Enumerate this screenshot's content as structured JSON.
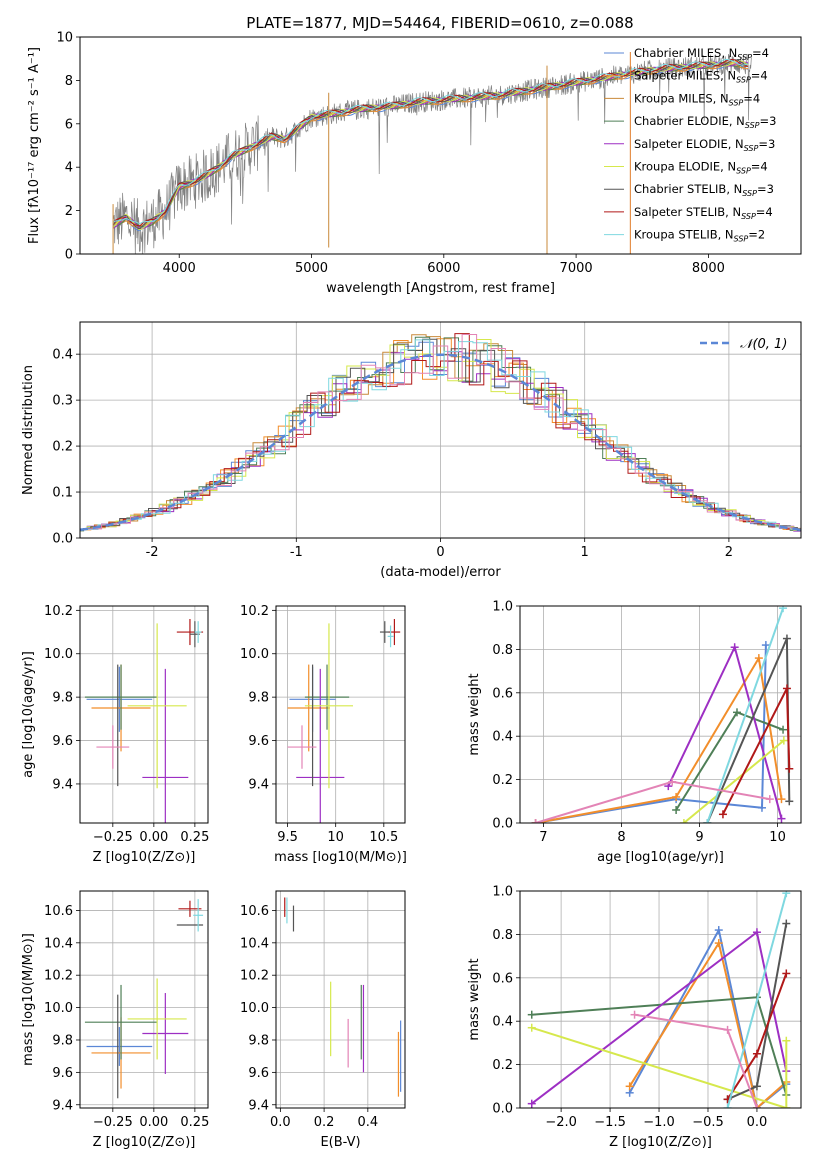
{
  "figure": {
    "title": "PLATE=1877, MJD=54464, FIBERID=0610, z=0.088"
  },
  "colors": {
    "Chabrier MILES": "#5b87d6",
    "Salpeter MILES": "#f28e2b",
    "Kroupa MILES": "#c98a3a",
    "Chabrier ELODIE": "#4f7f57",
    "Salpeter ELODIE": "#9d2fc3",
    "Kroupa ELODIE": "#d6e84c",
    "Chabrier STELIB": "#555555",
    "Salpeter STELIB": "#b01818",
    "Kroupa STELIB": "#7fd8e0",
    "extra_orange": "#e07c2a",
    "extra_pink": "#e384b6",
    "spectrum": "#808080",
    "gaussian": "#5b87d6"
  },
  "chart_data": [
    {
      "type": "line",
      "panel": "spectrum",
      "title": "PLATE=1877, MJD=54464, FIBERID=0610, z=0.088",
      "xlabel": "wavelength [Angstrom, rest frame]",
      "ylabel": "Flux [fλ10⁻¹⁷ erg cm⁻² s⁻¹ A⁻¹]",
      "xlim": [
        3250,
        8700
      ],
      "ylim": [
        0,
        10
      ],
      "xticks": [
        4000,
        5000,
        6000,
        7000,
        8000
      ],
      "yticks": [
        0,
        2,
        4,
        6,
        8,
        10
      ],
      "legend_position": "top-right",
      "legend": [
        {
          "label": "Chabrier MILES, N",
          "sub": "SSP",
          "value": "=4"
        },
        {
          "label": "Salpeter MILES, N",
          "sub": "SSP",
          "value": "=4"
        },
        {
          "label": "Kroupa MILES, N",
          "sub": "SSP",
          "value": "=4"
        },
        {
          "label": "Chabrier ELODIE, N",
          "sub": "SSP",
          "value": "=3"
        },
        {
          "label": "Salpeter ELODIE, N",
          "sub": "SSP",
          "value": "=3"
        },
        {
          "label": "Kroupa ELODIE, N",
          "sub": "SSP",
          "value": "=4"
        },
        {
          "label": "Chabrier STELIB, N",
          "sub": "SSP",
          "value": "=3"
        },
        {
          "label": "Salpeter STELIB, N",
          "sub": "SSP",
          "value": "=4"
        },
        {
          "label": "Kroupa STELIB, N",
          "sub": "SSP",
          "value": "=2"
        }
      ],
      "model_curve": {
        "x": [
          3500,
          3600,
          3700,
          3800,
          3900,
          4000,
          4100,
          4200,
          4300,
          4400,
          4500,
          4600,
          4700,
          4800,
          4900,
          5000,
          5200,
          5400,
          5600,
          5800,
          6000,
          6200,
          6400,
          6600,
          6800,
          7000,
          7200,
          7400,
          7600,
          7800,
          8000,
          8200,
          8300
        ],
        "y": [
          1.3,
          1.7,
          1.2,
          1.5,
          2.0,
          3.1,
          3.3,
          3.6,
          4.0,
          4.5,
          4.8,
          5.1,
          5.4,
          5.3,
          5.8,
          6.3,
          6.5,
          6.7,
          6.8,
          7.0,
          7.1,
          7.2,
          7.3,
          7.5,
          7.7,
          7.9,
          8.1,
          8.3,
          8.5,
          8.6,
          8.7,
          8.8,
          8.7
        ]
      },
      "spikes": [
        {
          "x": 3500,
          "y": 0
        },
        {
          "x": 5130,
          "y": 0.3
        },
        {
          "x": 6780,
          "y": 0
        },
        {
          "x": 7410,
          "y": 0
        }
      ]
    },
    {
      "type": "line",
      "panel": "residual-histograms",
      "xlabel": "(data-model)/error",
      "ylabel": "Normed distribution",
      "xlim": [
        -2.5,
        2.5
      ],
      "ylim": [
        0,
        0.47
      ],
      "xticks": [
        -2,
        -1,
        0,
        1,
        2
      ],
      "yticks": [
        0.0,
        0.1,
        0.2,
        0.3,
        0.4
      ],
      "legend_position": "top-right",
      "legend": [
        {
          "label": "𝒩(0, 1)"
        }
      ],
      "gaussian": {
        "mean": 0,
        "sigma": 1
      }
    },
    {
      "type": "scatter",
      "panel": "age-vs-Z",
      "xlabel": "Z [log10(Z/Z⊙)]",
      "ylabel": "age  [log10(age/yr)]",
      "xlim": [
        -0.45,
        0.33
      ],
      "ylim": [
        9.22,
        10.22
      ],
      "xticks": [
        -0.25,
        0.0,
        0.25
      ],
      "xticklabels": [
        "−0.25",
        "0.00",
        "0.25"
      ],
      "yticks": [
        9.4,
        9.6,
        9.8,
        10.0,
        10.2
      ],
      "points": [
        {
          "c": "Chabrier MILES",
          "x": -0.21,
          "y": 9.79,
          "xe": 0.2,
          "ye": 0.15
        },
        {
          "c": "Salpeter MILES",
          "x": -0.2,
          "y": 9.75,
          "xe": 0.18,
          "ye": 0.2
        },
        {
          "c": "Chabrier ELODIE",
          "x": -0.2,
          "y": 9.8,
          "xe": 0.22,
          "ye": 0.15
        },
        {
          "c": "Salpeter ELODIE",
          "x": 0.07,
          "y": 9.43,
          "xe": 0.14,
          "ye": 0.5
        },
        {
          "c": "Kroupa ELODIE",
          "x": 0.02,
          "y": 9.76,
          "xe": 0.18,
          "ye": 0.38
        },
        {
          "c": "Chabrier STELIB",
          "x": -0.22,
          "y": 9.67,
          "xe": 0.0,
          "ye": 0.28
        },
        {
          "c": "extra_pink",
          "x": -0.25,
          "y": 9.57,
          "xe": 0.1,
          "ye": 0.1
        },
        {
          "c": "Salpeter STELIB",
          "x": 0.22,
          "y": 10.1,
          "xe": 0.08,
          "ye": 0.06
        },
        {
          "c": "Chabrier STELIB",
          "x": 0.25,
          "y": 10.09,
          "xe": 0.03,
          "ye": 0.06
        },
        {
          "c": "Kroupa STELIB",
          "x": 0.27,
          "y": 10.1,
          "xe": 0.02,
          "ye": 0.05
        }
      ]
    },
    {
      "type": "scatter",
      "panel": "age-vs-mass",
      "xlabel": "mass [log10(M/M⊙)]",
      "ylabel": "",
      "xlim": [
        9.38,
        10.72
      ],
      "ylim": [
        9.22,
        10.22
      ],
      "xticks": [
        9.5,
        10.0,
        10.5
      ],
      "yticks": [
        9.4,
        9.6,
        9.8,
        10.0,
        10.2
      ],
      "points": [
        {
          "c": "Chabrier MILES",
          "x": 9.76,
          "y": 9.79,
          "xe": 0.24,
          "ye": 0.15
        },
        {
          "c": "Salpeter MILES",
          "x": 9.72,
          "y": 9.75,
          "xe": 0.22,
          "ye": 0.2
        },
        {
          "c": "Chabrier ELODIE",
          "x": 9.91,
          "y": 9.8,
          "xe": 0.23,
          "ye": 0.15
        },
        {
          "c": "Salpeter ELODIE",
          "x": 9.84,
          "y": 9.43,
          "xe": 0.25,
          "ye": 0.5
        },
        {
          "c": "Kroupa ELODIE",
          "x": 9.93,
          "y": 9.76,
          "xe": 0.25,
          "ye": 0.38
        },
        {
          "c": "Chabrier STELIB",
          "x": 9.76,
          "y": 9.67,
          "xe": 0.0,
          "ye": 0.28
        },
        {
          "c": "extra_pink",
          "x": 9.65,
          "y": 9.57,
          "xe": 0.15,
          "ye": 0.1
        },
        {
          "c": "Salpeter STELIB",
          "x": 10.61,
          "y": 10.1,
          "xe": 0.06,
          "ye": 0.06
        },
        {
          "c": "Chabrier STELIB",
          "x": 10.51,
          "y": 10.1,
          "xe": 0.05,
          "ye": 0.05
        },
        {
          "c": "Kroupa STELIB",
          "x": 10.57,
          "y": 10.08,
          "xe": 0.03,
          "ye": 0.05
        }
      ]
    },
    {
      "type": "line",
      "panel": "mass-weight-vs-age",
      "xlabel": "age  [log10(age/yr)]",
      "ylabel": "mass weight",
      "xlim": [
        6.7,
        10.3
      ],
      "ylim": [
        0,
        1
      ],
      "xticks": [
        7,
        8,
        9,
        10
      ],
      "yticks": [
        0.0,
        0.2,
        0.4,
        0.6,
        0.8,
        1.0
      ],
      "series": [
        {
          "c": "Chabrier MILES",
          "x": [
            6.9,
            8.7,
            9.8,
            9.85
          ],
          "y": [
            0.0,
            0.11,
            0.07,
            0.82
          ]
        },
        {
          "c": "Salpeter MILES",
          "x": [
            6.9,
            8.7,
            9.76,
            10.05
          ],
          "y": [
            0.0,
            0.12,
            0.76,
            0.11
          ]
        },
        {
          "c": "Chabrier ELODIE",
          "x": [
            8.7,
            9.48,
            10.07
          ],
          "y": [
            0.06,
            0.51,
            0.43
          ]
        },
        {
          "c": "Salpeter ELODIE",
          "x": [
            8.6,
            9.45,
            10.05
          ],
          "y": [
            0.17,
            0.81,
            0.02
          ]
        },
        {
          "c": "Kroupa ELODIE",
          "x": [
            8.8,
            10.08
          ],
          "y": [
            0.0,
            0.38
          ]
        },
        {
          "c": "Chabrier STELIB",
          "x": [
            9.1,
            10.12,
            10.15
          ],
          "y": [
            0.0,
            0.85,
            0.1
          ]
        },
        {
          "c": "Salpeter STELIB",
          "x": [
            9.3,
            10.12,
            10.15
          ],
          "y": [
            0.04,
            0.62,
            0.25
          ]
        },
        {
          "c": "Kroupa STELIB",
          "x": [
            9.1,
            10.07
          ],
          "y": [
            0.0,
            0.99
          ]
        },
        {
          "c": "extra_pink",
          "x": [
            6.9,
            8.65,
            9.9
          ],
          "y": [
            0.0,
            0.19,
            0.11
          ]
        }
      ]
    },
    {
      "type": "scatter",
      "panel": "mass-vs-Z",
      "xlabel": "Z [log10(Z/Z⊙)]",
      "ylabel": "mass [log10(M/M⊙)]",
      "xlim": [
        -0.45,
        0.33
      ],
      "ylim": [
        9.38,
        10.72
      ],
      "xticks": [
        -0.25,
        0.0,
        0.25
      ],
      "xticklabels": [
        "−0.25",
        "0.00",
        "0.25"
      ],
      "yticks": [
        9.4,
        9.6,
        9.8,
        10.0,
        10.2,
        10.4,
        10.6
      ],
      "points": [
        {
          "c": "Chabrier MILES",
          "x": -0.21,
          "y": 9.76,
          "xe": 0.2,
          "ye": 0.12
        },
        {
          "c": "Salpeter MILES",
          "x": -0.2,
          "y": 9.72,
          "xe": 0.18,
          "ye": 0.22
        },
        {
          "c": "Chabrier ELODIE",
          "x": -0.2,
          "y": 9.91,
          "xe": 0.22,
          "ye": 0.23
        },
        {
          "c": "Salpeter ELODIE",
          "x": 0.07,
          "y": 9.84,
          "xe": 0.14,
          "ye": 0.25
        },
        {
          "c": "Kroupa ELODIE",
          "x": 0.02,
          "y": 9.93,
          "xe": 0.18,
          "ye": 0.25
        },
        {
          "c": "Chabrier STELIB",
          "x": -0.22,
          "y": 9.76,
          "xe": 0.0,
          "ye": 0.32
        },
        {
          "c": "Salpeter STELIB",
          "x": 0.22,
          "y": 10.61,
          "xe": 0.07,
          "ye": 0.05
        },
        {
          "c": "Chabrier STELIB",
          "x": 0.22,
          "y": 10.51,
          "xe": 0.08,
          "ye": 0.0
        },
        {
          "c": "Kroupa STELIB",
          "x": 0.27,
          "y": 10.57,
          "xe": 0.03,
          "ye": 0.1
        }
      ]
    },
    {
      "type": "scatter",
      "panel": "mass-vs-EBV",
      "xlabel": "E(B-V)",
      "ylabel": "",
      "xlim": [
        -0.02,
        0.57
      ],
      "ylim": [
        9.38,
        10.72
      ],
      "xticks": [
        0.0,
        0.2,
        0.4
      ],
      "xticklabels": [
        "0.0",
        "0.2",
        "0.4"
      ],
      "yticks": [
        9.4,
        9.6,
        9.8,
        10.0,
        10.2,
        10.4,
        10.6
      ],
      "points": [
        {
          "c": "Kroupa ELODIE",
          "x": 0.23,
          "y": 9.93,
          "xe": 0.0,
          "ye": 0.23
        },
        {
          "c": "extra_pink",
          "x": 0.31,
          "y": 9.78,
          "xe": 0.0,
          "ye": 0.15
        },
        {
          "c": "Chabrier ELODIE",
          "x": 0.37,
          "y": 9.91,
          "xe": 0.0,
          "ye": 0.23
        },
        {
          "c": "Salpeter ELODIE",
          "x": 0.38,
          "y": 9.87,
          "xe": 0.0,
          "ye": 0.27
        },
        {
          "c": "Salpeter MILES",
          "x": 0.54,
          "y": 9.65,
          "xe": 0.0,
          "ye": 0.2
        },
        {
          "c": "Chabrier MILES",
          "x": 0.55,
          "y": 9.7,
          "xe": 0.0,
          "ye": 0.22
        },
        {
          "c": "Salpeter STELIB",
          "x": 0.02,
          "y": 10.62,
          "xe": 0.0,
          "ye": 0.06
        },
        {
          "c": "Chabrier STELIB",
          "x": 0.06,
          "y": 10.55,
          "xe": 0.0,
          "ye": 0.08
        },
        {
          "c": "Kroupa STELIB",
          "x": 0.03,
          "y": 10.6,
          "xe": 0.0,
          "ye": 0.08
        }
      ]
    },
    {
      "type": "line",
      "panel": "mass-weight-vs-Z",
      "xlabel": "Z [log10(Z/Z⊙)]",
      "ylabel": "mass weight",
      "xlim": [
        -2.42,
        0.45
      ],
      "ylim": [
        0,
        1
      ],
      "xticks": [
        -2.0,
        -1.5,
        -1.0,
        -0.5,
        0.0
      ],
      "xticklabels": [
        "−2.0",
        "−1.5",
        "−1.0",
        "−0.5",
        "0.0"
      ],
      "yticks": [
        0.0,
        0.2,
        0.4,
        0.6,
        0.8,
        1.0
      ],
      "series": [
        {
          "c": "Chabrier MILES",
          "x": [
            -1.3,
            -0.39,
            0.0,
            0.3
          ],
          "y": [
            0.07,
            0.82,
            0.0,
            0.11
          ]
        },
        {
          "c": "Salpeter MILES",
          "x": [
            -1.3,
            -0.39,
            0.0,
            0.3
          ],
          "y": [
            0.1,
            0.76,
            0.0,
            0.12
          ]
        },
        {
          "c": "Chabrier ELODIE",
          "x": [
            -2.3,
            0.0,
            0.3
          ],
          "y": [
            0.43,
            0.51,
            0.06
          ]
        },
        {
          "c": "Salpeter ELODIE",
          "x": [
            -2.3,
            0.0,
            0.3
          ],
          "y": [
            0.02,
            0.81,
            0.17
          ]
        },
        {
          "c": "Kroupa ELODIE",
          "x": [
            -2.3,
            0.3
          ],
          "y": [
            0.37,
            0.0
          ]
        },
        {
          "c": "Kroupa ELODIE",
          "x": [
            0.3,
            0.3
          ],
          "y": [
            0.0,
            0.31
          ]
        },
        {
          "c": "Chabrier STELIB",
          "x": [
            -0.3,
            0.0,
            0.3
          ],
          "y": [
            0.04,
            0.1,
            0.85
          ]
        },
        {
          "c": "Salpeter STELIB",
          "x": [
            -0.3,
            0.0,
            0.3
          ],
          "y": [
            0.04,
            0.25,
            0.62
          ]
        },
        {
          "c": "Kroupa STELIB",
          "x": [
            -0.3,
            0.3
          ],
          "y": [
            0.0,
            0.99
          ]
        },
        {
          "c": "extra_pink",
          "x": [
            -1.25,
            -0.3,
            0.0
          ],
          "y": [
            0.43,
            0.36,
            0.0
          ]
        }
      ]
    }
  ]
}
